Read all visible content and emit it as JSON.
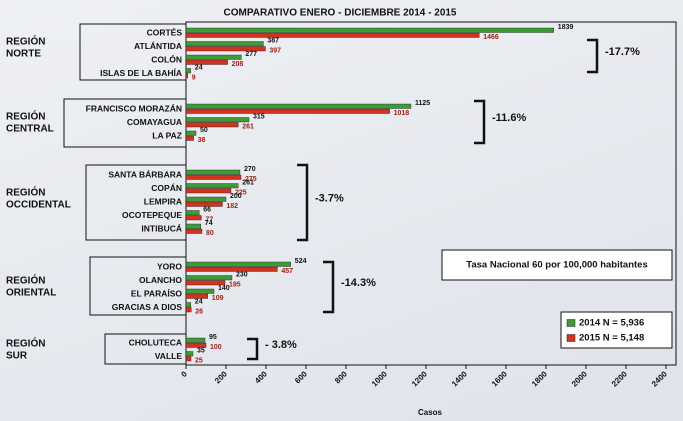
{
  "chart_data": {
    "type": "bar",
    "orientation": "horizontal",
    "title": "COMPARATIVO  ENERO - DICIEMBRE 2014 - 2015",
    "xlabel": "Casos",
    "annotation": "Tasa Nacional 60 por 100,000 habitantes",
    "regions": [
      {
        "name": [
          "REGIÓN",
          "NORTE"
        ],
        "change": "-17.7%",
        "categories": [
          "CORTÉS",
          "ATLÁNTIDA",
          "COLÓN",
          "ISLAS DE LA BAHÍA"
        ]
      },
      {
        "name": [
          "REGIÓN",
          "CENTRAL"
        ],
        "change": "-11.6%",
        "categories": [
          "FRANCISCO MORAZÁN",
          "COMAYAGUA",
          "LA PAZ"
        ]
      },
      {
        "name": [
          "REGIÓN",
          "OCCIDENTAL"
        ],
        "change": "-3.7%",
        "categories": [
          "SANTA BÁRBARA",
          "COPÁN",
          "LEMPIRA",
          "OCOTEPEQUE",
          "INTIBUCÁ"
        ]
      },
      {
        "name": [
          "REGIÓN",
          "ORIENTAL"
        ],
        "change": "-14.3%",
        "categories": [
          "YORO",
          "OLANCHO",
          "EL PARAÍSO",
          "GRACIAS A DIOS"
        ]
      },
      {
        "name": [
          "REGIÓN",
          "SUR"
        ],
        "change": "- 3.8%",
        "categories": [
          "CHOLUTECA",
          "VALLE"
        ]
      }
    ],
    "series": [
      {
        "name": "2014 N = 5,936",
        "color": "#3f9a3a",
        "label_color": "#111111",
        "values": [
          1839,
          387,
          277,
          24,
          1125,
          315,
          50,
          270,
          261,
          200,
          66,
          74,
          524,
          230,
          140,
          24,
          95,
          35
        ]
      },
      {
        "name": "2015 N = 5,148",
        "color": "#d2321f",
        "label_color": "#a02018",
        "values": [
          1466,
          397,
          208,
          9,
          1018,
          261,
          38,
          275,
          225,
          182,
          77,
          80,
          457,
          195,
          109,
          26,
          100,
          25
        ]
      }
    ],
    "xlim": [
      0,
      2450
    ],
    "xticks": [
      0,
      200,
      400,
      600,
      800,
      1000,
      1200,
      1400,
      1600,
      1800,
      2000,
      2200,
      2400
    ]
  }
}
